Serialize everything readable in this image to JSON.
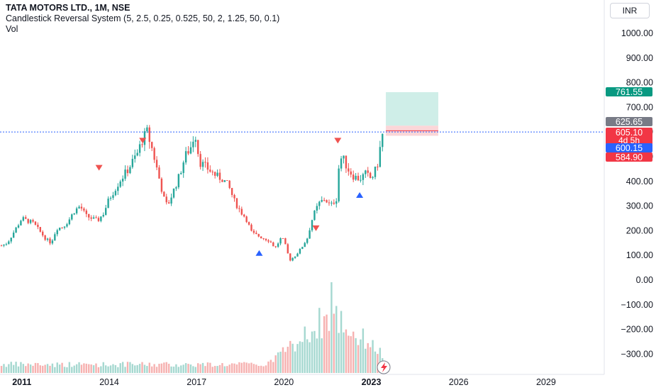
{
  "legend": {
    "symbol": "TATA MOTORS LTD., 1M, NSE",
    "indicator": "Candlestick Reversal System (5, 2.5, 0.25, 0.525, 50, 2, 1.25, 50, 0.1)",
    "volume": "Vol"
  },
  "currency": "INR",
  "colors": {
    "up": "#26a69a",
    "down": "#ef5350",
    "volume_up": "#a5d8d0",
    "volume_down": "#f6b1b0",
    "signal_sell": "#ef5350",
    "signal_buy": "#2962ff",
    "level_line": "#2962ff",
    "target_zone": "#cfeee8",
    "stop_zone": "#fbd6d8"
  },
  "price_labels": [
    {
      "value": 761.55,
      "text": "761.55",
      "color": "#089981"
    },
    {
      "value": 625.65,
      "text": "625.65",
      "color": "#787b86"
    },
    {
      "value": 605.1,
      "text": "605.10",
      "sub": "4d 5h",
      "color": "#f23645"
    },
    {
      "value": 600.15,
      "text": "600.15",
      "color": "#2962ff"
    },
    {
      "value": 584.9,
      "text": "584.90",
      "color": "#f23645"
    }
  ],
  "chart_data": {
    "type": "candlestick",
    "y_axis": {
      "ticks": [
        "1000.00",
        "900.00",
        "800.00",
        "700.00",
        "600.00",
        "500.00",
        "400.00",
        "300.00",
        "200.00",
        "100.00",
        "0.00",
        "−100.00",
        "−200.00",
        "−300.00"
      ],
      "ylim": [
        -340,
        1050
      ]
    },
    "x_axis": {
      "ticks": [
        "2011",
        "2014",
        "2017",
        "2020",
        "2023",
        "2026",
        "2029"
      ],
      "xlim": [
        2010.25,
        2031.0
      ]
    },
    "current_level": 600.15,
    "target_zone": {
      "x_start": 2023.5,
      "x_end": 2025.3,
      "low": 625.65,
      "high": 761.55
    },
    "stop_zone": {
      "x_start": 2023.5,
      "x_end": 2025.3,
      "low": 584.9,
      "high": 625.65
    },
    "price_path": [
      [
        2010.3,
        140
      ],
      [
        2010.5,
        150
      ],
      [
        2010.7,
        190
      ],
      [
        2010.9,
        230
      ],
      [
        2011.0,
        250
      ],
      [
        2011.2,
        240
      ],
      [
        2011.4,
        230
      ],
      [
        2011.6,
        200
      ],
      [
        2011.8,
        170
      ],
      [
        2012.0,
        150
      ],
      [
        2012.2,
        210
      ],
      [
        2012.4,
        215
      ],
      [
        2012.6,
        240
      ],
      [
        2012.8,
        280
      ],
      [
        2013.0,
        300
      ],
      [
        2013.2,
        260
      ],
      [
        2013.4,
        250
      ],
      [
        2013.6,
        240
      ],
      [
        2013.8,
        270
      ],
      [
        2014.0,
        330
      ],
      [
        2014.2,
        370
      ],
      [
        2014.4,
        410
      ],
      [
        2014.6,
        440
      ],
      [
        2014.8,
        480
      ],
      [
        2015.0,
        520
      ],
      [
        2015.1,
        560
      ],
      [
        2015.3,
        600
      ],
      [
        2015.5,
        520
      ],
      [
        2015.7,
        420
      ],
      [
        2015.9,
        320
      ],
      [
        2016.0,
        300
      ],
      [
        2016.2,
        360
      ],
      [
        2016.4,
        420
      ],
      [
        2016.6,
        500
      ],
      [
        2016.8,
        540
      ],
      [
        2016.95,
        600
      ],
      [
        2017.1,
        480
      ],
      [
        2017.3,
        460
      ],
      [
        2017.5,
        440
      ],
      [
        2017.7,
        420
      ],
      [
        2017.9,
        410
      ],
      [
        2018.1,
        380
      ],
      [
        2018.3,
        320
      ],
      [
        2018.5,
        280
      ],
      [
        2018.7,
        250
      ],
      [
        2018.9,
        190
      ],
      [
        2019.1,
        180
      ],
      [
        2019.3,
        170
      ],
      [
        2019.5,
        160
      ],
      [
        2019.7,
        130
      ],
      [
        2019.9,
        170
      ],
      [
        2020.0,
        160
      ],
      [
        2020.2,
        80
      ],
      [
        2020.4,
        100
      ],
      [
        2020.6,
        130
      ],
      [
        2020.8,
        170
      ],
      [
        2021.0,
        260
      ],
      [
        2021.2,
        310
      ],
      [
        2021.4,
        330
      ],
      [
        2021.6,
        300
      ],
      [
        2021.8,
        330
      ],
      [
        2021.9,
        480
      ],
      [
        2022.0,
        500
      ],
      [
        2022.2,
        450
      ],
      [
        2022.4,
        420
      ],
      [
        2022.6,
        410
      ],
      [
        2022.8,
        430
      ],
      [
        2023.0,
        410
      ],
      [
        2023.2,
        460
      ],
      [
        2023.35,
        570
      ],
      [
        2023.45,
        625
      ]
    ],
    "signals": [
      {
        "x": 2013.65,
        "price": 455,
        "type": "sell"
      },
      {
        "x": 2015.15,
        "price": 565,
        "type": "sell"
      },
      {
        "x": 2019.15,
        "price": 110,
        "type": "buy"
      },
      {
        "x": 2021.1,
        "price": 210,
        "type": "sell"
      },
      {
        "x": 2021.85,
        "price": 565,
        "type": "sell"
      },
      {
        "x": 2022.6,
        "price": 345,
        "type": "buy"
      }
    ],
    "volume_peak_x": 2021.65
  }
}
